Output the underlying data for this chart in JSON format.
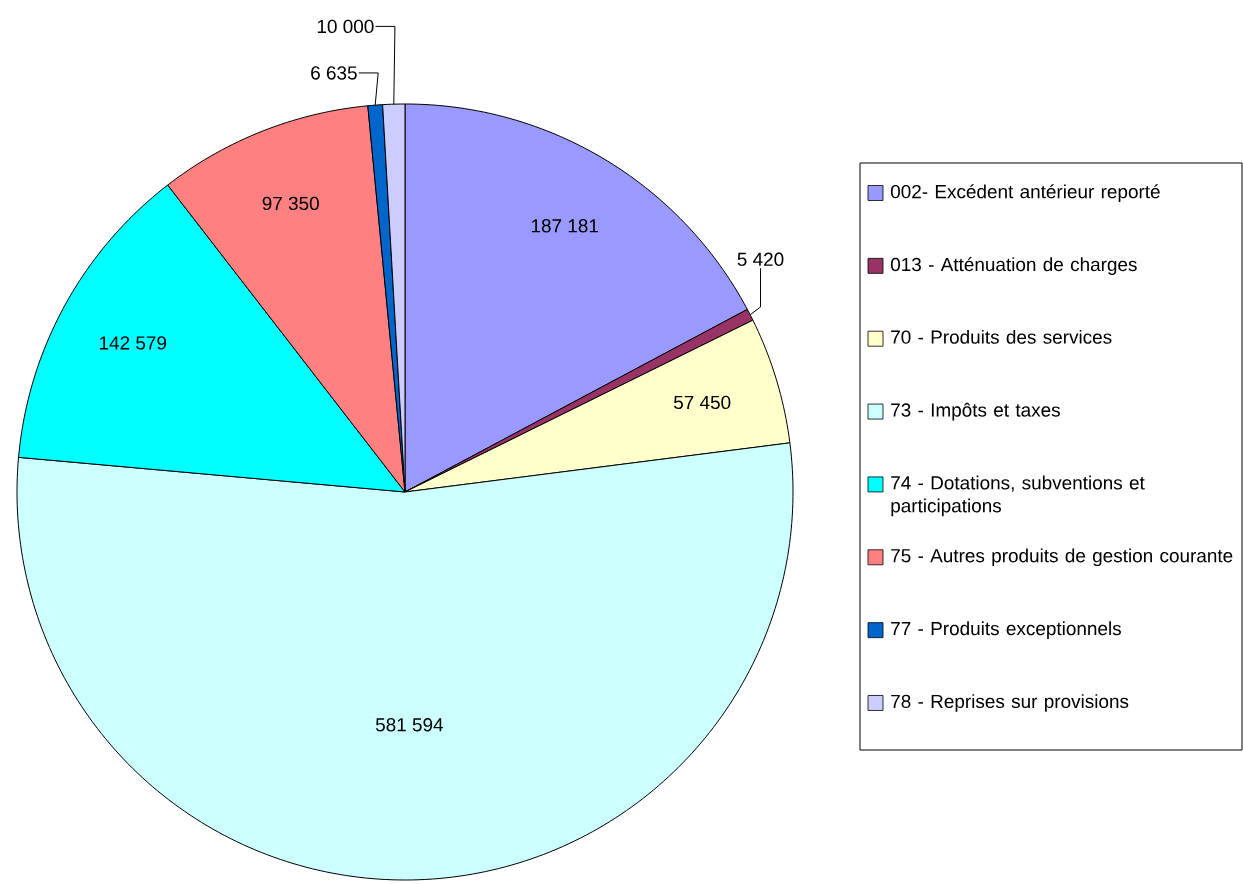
{
  "chart_data": {
    "type": "pie",
    "categories": [
      "002- Excédent antérieur reporté",
      "013 - Atténuation de charges",
      "70 - Produits des services",
      "73 - Impôts et taxes",
      "74 - Dotations, subventions et participations",
      "75 - Autres produits de gestion courante",
      "77 - Produits exceptionnels",
      "78 - Reprises sur provisions"
    ],
    "values": [
      187181,
      5420,
      57450,
      581594,
      142579,
      97350,
      6635,
      10000
    ],
    "value_labels": [
      "187 181",
      "5 420",
      "57 450",
      "581 594",
      "142 579",
      "97 350",
      "6 635",
      "10 000"
    ],
    "colors": [
      "#9999ff",
      "#993366",
      "#ffffcc",
      "#ccffff",
      "#00ffff",
      "#ff8080",
      "#0066cc",
      "#ccccff"
    ],
    "legend": "right"
  }
}
